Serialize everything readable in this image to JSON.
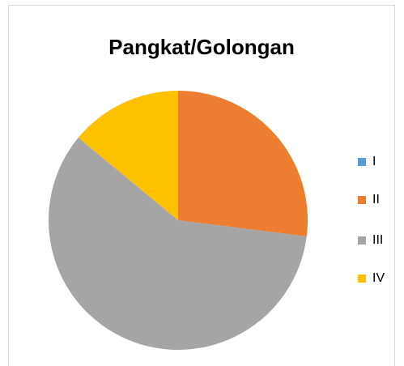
{
  "chart_data": {
    "type": "pie",
    "title": "Pangkat/Golongan",
    "categories": [
      "I",
      "II",
      "III",
      "IV"
    ],
    "values": [
      0,
      27,
      59,
      14
    ],
    "colors": [
      "#5b9bd5",
      "#ed7d31",
      "#a5a5a5",
      "#ffc000"
    ],
    "legend": "right"
  }
}
